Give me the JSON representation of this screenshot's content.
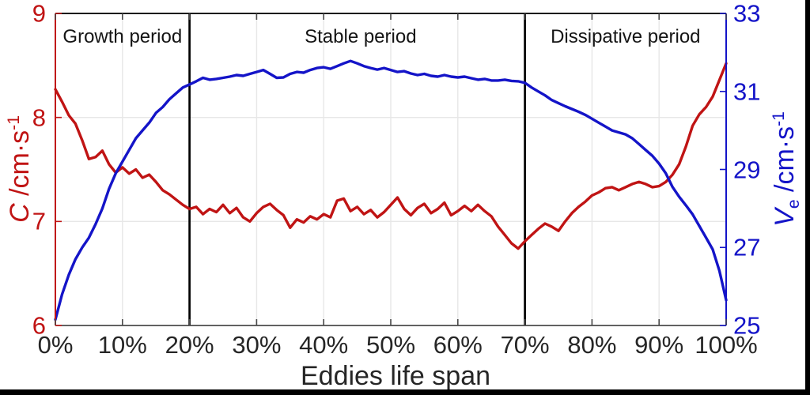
{
  "chart_data": {
    "type": "line",
    "title": "",
    "xlabel": "Eddies life span",
    "x_range_pct": [
      0,
      100
    ],
    "x_tick_pcts": [
      0,
      10,
      20,
      30,
      40,
      50,
      60,
      70,
      80,
      90,
      100
    ],
    "x_tick_labels": [
      "0%",
      "10%",
      "20%",
      "30%",
      "40%",
      "50%",
      "60%",
      "70%",
      "80%",
      "90%",
      "100%"
    ],
    "grid": "on",
    "legend": "none",
    "dividers_pct": [
      20,
      70
    ],
    "divider_color": "#000000",
    "annotations": [
      {
        "text": "Growth period",
        "x_pct": 10
      },
      {
        "text": "Stable period",
        "x_pct": 45.5
      },
      {
        "text": "Dissipative period",
        "x_pct": 85
      }
    ],
    "axes": {
      "left": {
        "label": "C /cm·s^-1",
        "label_parts": {
          "var": "C",
          "unit": " /cm·s",
          "sup": "-1"
        },
        "ticks": [
          6,
          7,
          8,
          9
        ],
        "range": [
          6,
          9
        ],
        "grid_values": [
          7,
          8
        ],
        "color": "#c01414"
      },
      "right": {
        "label": "V_e /cm·s^-1",
        "label_parts": {
          "var": "V",
          "sub": "e",
          "unit": " /cm·s",
          "sup": "-1"
        },
        "ticks": [
          25,
          27,
          29,
          31,
          33
        ],
        "range": [
          25,
          33
        ],
        "color": "#1414c8"
      }
    },
    "x_pct": [
      0,
      1,
      2,
      3,
      4,
      5,
      6,
      7,
      8,
      9,
      10,
      11,
      12,
      13,
      14,
      15,
      16,
      17,
      18,
      19,
      20,
      21,
      22,
      23,
      24,
      25,
      26,
      27,
      28,
      29,
      30,
      31,
      32,
      33,
      34,
      35,
      36,
      37,
      38,
      39,
      40,
      41,
      42,
      43,
      44,
      45,
      46,
      47,
      48,
      49,
      50,
      51,
      52,
      53,
      54,
      55,
      56,
      57,
      58,
      59,
      60,
      61,
      62,
      63,
      64,
      65,
      66,
      67,
      68,
      69,
      70,
      71,
      72,
      73,
      74,
      75,
      76,
      77,
      78,
      79,
      80,
      81,
      82,
      83,
      84,
      85,
      86,
      87,
      88,
      89,
      90,
      91,
      92,
      93,
      94,
      95,
      96,
      97,
      98,
      99,
      100
    ],
    "series": [
      {
        "name": "C",
        "axis": "left",
        "color": "#c01414",
        "values": [
          8.27,
          8.15,
          8.02,
          7.94,
          7.78,
          7.6,
          7.62,
          7.68,
          7.55,
          7.47,
          7.52,
          7.46,
          7.5,
          7.42,
          7.45,
          7.38,
          7.3,
          7.26,
          7.21,
          7.16,
          7.12,
          7.14,
          7.07,
          7.12,
          7.09,
          7.16,
          7.08,
          7.13,
          7.04,
          7.0,
          7.08,
          7.14,
          7.17,
          7.11,
          7.06,
          6.94,
          7.02,
          6.99,
          7.05,
          7.02,
          7.07,
          7.04,
          7.2,
          7.22,
          7.1,
          7.14,
          7.07,
          7.11,
          7.04,
          7.09,
          7.16,
          7.23,
          7.12,
          7.06,
          7.13,
          7.17,
          7.08,
          7.12,
          7.18,
          7.06,
          7.1,
          7.15,
          7.1,
          7.16,
          7.1,
          7.05,
          6.95,
          6.87,
          6.79,
          6.74,
          6.81,
          6.87,
          6.93,
          6.98,
          6.95,
          6.91,
          7.0,
          7.08,
          7.14,
          7.19,
          7.25,
          7.28,
          7.32,
          7.33,
          7.3,
          7.33,
          7.36,
          7.38,
          7.36,
          7.33,
          7.34,
          7.38,
          7.45,
          7.55,
          7.72,
          7.92,
          8.03,
          8.1,
          8.2,
          8.36,
          8.52
        ]
      },
      {
        "name": "Ve",
        "axis": "right",
        "color": "#1414c8",
        "values": [
          25.15,
          25.8,
          26.3,
          26.7,
          27.0,
          27.25,
          27.6,
          28.0,
          28.5,
          28.9,
          29.2,
          29.5,
          29.8,
          30.0,
          30.2,
          30.45,
          30.6,
          30.8,
          30.95,
          31.1,
          31.18,
          31.26,
          31.35,
          31.3,
          31.32,
          31.35,
          31.38,
          31.42,
          31.4,
          31.45,
          31.5,
          31.55,
          31.45,
          31.35,
          31.36,
          31.45,
          31.5,
          31.48,
          31.55,
          31.6,
          31.62,
          31.58,
          31.65,
          31.72,
          31.78,
          31.72,
          31.65,
          31.6,
          31.56,
          31.6,
          31.55,
          31.5,
          31.52,
          31.46,
          31.42,
          31.45,
          31.4,
          31.38,
          31.42,
          31.38,
          31.36,
          31.38,
          31.34,
          31.3,
          31.32,
          31.28,
          31.28,
          31.3,
          31.27,
          31.26,
          31.22,
          31.1,
          31.0,
          30.9,
          30.78,
          30.7,
          30.62,
          30.55,
          30.48,
          30.4,
          30.3,
          30.2,
          30.1,
          30.0,
          29.95,
          29.9,
          29.8,
          29.65,
          29.5,
          29.35,
          29.15,
          28.9,
          28.55,
          28.3,
          28.08,
          27.85,
          27.55,
          27.25,
          26.95,
          26.4,
          25.65
        ]
      }
    ]
  }
}
